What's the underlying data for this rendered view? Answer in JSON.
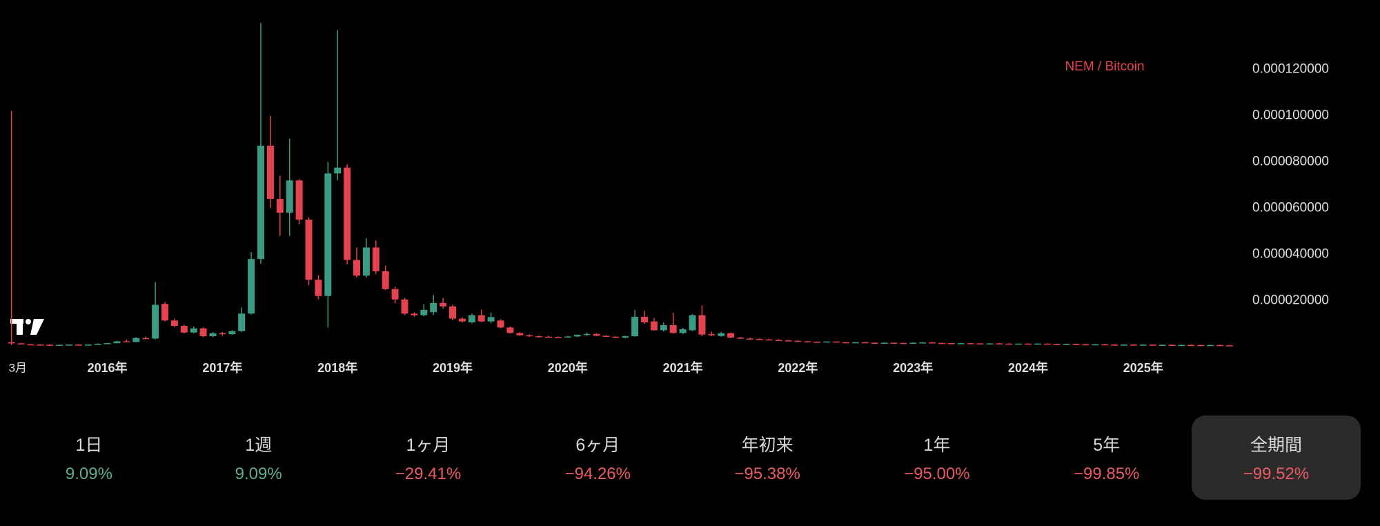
{
  "chart_data": {
    "type": "candlestick",
    "categories": [
      "3月",
      null,
      null,
      null,
      null,
      null,
      null,
      null,
      null,
      null,
      "2016年",
      null,
      null,
      null,
      null,
      null,
      null,
      null,
      null,
      null,
      null,
      null,
      "2017年",
      null,
      null,
      null,
      null,
      null,
      null,
      null,
      null,
      null,
      null,
      null,
      "2018年",
      null,
      null,
      null,
      null,
      null,
      null,
      null,
      null,
      null,
      null,
      null,
      "2019年",
      null,
      null,
      null,
      null,
      null,
      null,
      null,
      null,
      null,
      null,
      null,
      "2020年",
      null,
      null,
      null,
      null,
      null,
      null,
      null,
      null,
      null,
      null,
      null,
      "2021年",
      null,
      null,
      null,
      null,
      null,
      null,
      null,
      null,
      null,
      null,
      null,
      "2022年",
      null,
      null,
      null,
      null,
      null,
      null,
      null,
      null,
      null,
      null,
      null,
      "2023年",
      null,
      null,
      null,
      null,
      null,
      null,
      null,
      null,
      null,
      null,
      null,
      "2024年",
      null,
      null,
      null,
      null,
      null,
      null,
      null,
      null,
      null,
      null,
      null,
      "2025年",
      null,
      null,
      null,
      null,
      null,
      null,
      null,
      null,
      null
    ],
    "series": [
      {
        "name": "NEM / Bitcoin",
        "color": "#e5424f",
        "up_color": "#3a9c82",
        "down_color": "#e5424f",
        "open": [
          2e-06,
          1.5e-06,
          1.1e-06,
          1e-06,
          9e-07,
          8e-07,
          9e-07,
          1e-06,
          9e-07,
          1e-06,
          1.3e-06,
          1.6e-06,
          2.4e-06,
          2.1e-06,
          3.8e-06,
          3.6e-06,
          1.86e-05,
          1.14e-05,
          9.1e-06,
          6.2e-06,
          8e-06,
          4.6e-06,
          5.9e-06,
          5.5e-06,
          6.8e-06,
          1.44e-05,
          3.8e-05,
          8.7e-05,
          6.4e-05,
          5.8e-05,
          7.2e-05,
          5.5e-05,
          2.9e-05,
          2.2e-05,
          7.5e-05,
          7.75e-05,
          3.76e-05,
          3.08e-05,
          4.3e-05,
          3.27e-05,
          2.5e-05,
          2.05e-05,
          1.44e-05,
          1.37e-05,
          1.5e-05,
          1.9e-05,
          1.75e-05,
          1.22e-05,
          1.06e-05,
          1.37e-05,
          1.1e-05,
          1.14e-05,
          8.4e-06,
          6e-06,
          5e-06,
          4.6e-06,
          4.4e-06,
          4.3e-06,
          4.1e-06,
          4.5e-06,
          5.2e-06,
          5.6e-06,
          4.8e-06,
          4.4e-06,
          4e-06,
          4.6e-06,
          1.3e-05,
          1.1e-05,
          7.2e-06,
          9.4e-06,
          6e-06,
          7.2e-06,
          1.37e-05,
          5.5e-06,
          4.7e-06,
          5.9e-06,
          4e-06,
          3.6e-06,
          3.4e-06,
          3.2e-06,
          3e-06,
          2.8e-06,
          2.6e-06,
          2.4e-06,
          2.2e-06,
          2.1e-06,
          2.3e-06,
          2e-06,
          1.9e-06,
          2e-06,
          1.8e-06,
          1.7e-06,
          1.8e-06,
          1.7e-06,
          1.6e-06,
          1.8e-06,
          1.9e-06,
          1.7e-06,
          1.6e-06,
          1.5e-06,
          1.6e-06,
          1.5e-06,
          1.4e-06,
          1.5e-06,
          1.4e-06,
          1.3e-06,
          1.4e-06,
          1.3e-06,
          1.4e-06,
          1.2e-06,
          1.1e-06,
          1.2e-06,
          1.1e-06,
          1e-06,
          1.1e-06,
          1e-06,
          9.5e-07,
          1e-06,
          9e-07,
          9.5e-07,
          8.5e-07,
          9e-07,
          8e-07,
          8.5e-07,
          8e-07,
          7.5e-07,
          8e-07,
          7e-07
        ],
        "high": [
          0.000102,
          1.8e-06,
          1.3e-06,
          1.2e-06,
          1.1e-06,
          1e-06,
          1.1e-06,
          1.2e-06,
          1.1e-06,
          1.5e-06,
          1.8e-06,
          2.6e-06,
          3.2e-06,
          4.2e-06,
          4.5e-06,
          2.8e-05,
          1.94e-05,
          1.22e-05,
          9.6e-06,
          8.8e-06,
          8.5e-06,
          6.4e-06,
          6.4e-06,
          7.2e-06,
          1.7e-05,
          4.1e-05,
          0.00014,
          0.0001,
          7.4e-05,
          9e-05,
          7.25e-05,
          5.6e-05,
          3.1e-05,
          8e-05,
          0.000137,
          7.9e-05,
          4.3e-05,
          4.7e-05,
          4.6e-05,
          3.5e-05,
          2.6e-05,
          2.12e-05,
          1.5e-05,
          1.85e-05,
          2.24e-05,
          2.12e-05,
          1.82e-05,
          1.28e-05,
          1.44e-05,
          1.6e-05,
          1.48e-05,
          1.2e-05,
          8.8e-06,
          6.4e-06,
          5.4e-06,
          5e-06,
          4.8e-06,
          4.6e-06,
          4.8e-06,
          5.4e-06,
          6.2e-06,
          5.9e-06,
          5e-06,
          4.6e-06,
          4.9e-06,
          1.6e-05,
          1.56e-05,
          1.25e-05,
          1.05e-05,
          1.48e-05,
          8.2e-06,
          1.42e-05,
          1.79e-05,
          6.6e-06,
          6.4e-06,
          6.2e-06,
          4.4e-06,
          4e-06,
          3.8e-06,
          3.5e-06,
          3.3e-06,
          3.1e-06,
          2.9e-06,
          2.55e-06,
          2.35e-06,
          2.45e-06,
          2.45e-06,
          2.15e-06,
          2.15e-06,
          2.15e-06,
          1.95e-06,
          1.95e-06,
          1.95e-06,
          1.85e-06,
          1.95e-06,
          2.05e-06,
          2.05e-06,
          1.85e-06,
          1.75e-06,
          1.75e-06,
          1.75e-06,
          1.65e-06,
          1.65e-06,
          1.65e-06,
          1.55e-06,
          1.55e-06,
          1.55e-06,
          1.55e-06,
          1.55e-06,
          1.35e-06,
          1.35e-06,
          1.35e-06,
          1.25e-06,
          1.25e-06,
          1.25e-06,
          1.15e-06,
          1.15e-06,
          1.15e-06,
          1.1e-06,
          1.1e-06,
          1.05e-06,
          1.05e-06,
          1e-06,
          1e-06,
          9.5e-07,
          9.5e-07,
          9.5e-07,
          8.5e-07
        ],
        "low": [
          8e-07,
          1e-06,
          9e-07,
          8e-07,
          7e-07,
          7e-07,
          8e-07,
          8e-07,
          8e-07,
          9e-07,
          1.2e-06,
          1.5e-06,
          2e-06,
          2e-06,
          3.3e-06,
          3.2e-06,
          1.1e-05,
          8.6e-06,
          5.8e-06,
          5.9e-06,
          4.2e-06,
          4.2e-06,
          4.8e-06,
          5.2e-06,
          6.5e-06,
          1.4e-05,
          3.6e-05,
          6e-05,
          4.8e-05,
          4.8e-05,
          5.3e-05,
          2.66e-05,
          2.05e-05,
          8.4e-06,
          7.2e-05,
          3.57e-05,
          3e-05,
          3e-05,
          3.15e-05,
          2.45e-05,
          1.88e-05,
          1.37e-05,
          1.3e-05,
          1.32e-05,
          1.37e-05,
          1.65e-05,
          1.14e-05,
          1.06e-05,
          1.02e-05,
          1.06e-05,
          1.02e-05,
          8e-06,
          5.7e-06,
          4.8e-06,
          4.4e-06,
          4.2e-06,
          4.1e-06,
          3.9e-06,
          3.9e-06,
          4.2e-06,
          4.8e-06,
          4.6e-06,
          4.2e-06,
          3.8e-06,
          3.7e-06,
          4.4e-06,
          1e-05,
          7e-06,
          6.6e-06,
          5.7e-06,
          5.5e-06,
          6.8e-06,
          4.6e-06,
          4.6e-06,
          4.4e-06,
          3.7e-06,
          3.4e-06,
          3.2e-06,
          3e-06,
          2.9e-06,
          2.7e-06,
          2.5e-06,
          2.3e-06,
          2.1e-06,
          2e-06,
          2e-06,
          1.9e-06,
          1.8e-06,
          1.8e-06,
          1.7e-06,
          1.6e-06,
          1.6e-06,
          1.6e-06,
          1.5e-06,
          1.5e-06,
          1.7e-06,
          1.6e-06,
          1.5e-06,
          1.4e-06,
          1.4e-06,
          1.4e-06,
          1.3e-06,
          1.3e-06,
          1.3e-06,
          1.2e-06,
          1.2e-06,
          1.2e-06,
          1.2e-06,
          1.1e-06,
          1e-06,
          1e-06,
          1e-06,
          9e-07,
          9e-07,
          9e-07,
          8.5e-07,
          8.5e-07,
          8e-07,
          8e-07,
          7.5e-07,
          7.5e-07,
          7e-07,
          7e-07,
          7e-07,
          6.5e-07,
          6.5e-07,
          6e-07,
          5.5e-07
        ],
        "close": [
          1.5e-06,
          1.1e-06,
          1e-06,
          9e-07,
          8e-07,
          9e-07,
          1e-06,
          9e-07,
          1e-06,
          1.3e-06,
          1.6e-06,
          2.4e-06,
          2.1e-06,
          3.8e-06,
          3.6e-06,
          1.82e-05,
          1.14e-05,
          9.1e-06,
          6.2e-06,
          8e-06,
          4.6e-06,
          5.9e-06,
          5.5e-06,
          6.8e-06,
          1.44e-05,
          3.8e-05,
          8.7e-05,
          6.4e-05,
          5.8e-05,
          7.2e-05,
          5.5e-05,
          2.9e-05,
          2.2e-05,
          7.5e-05,
          7.75e-05,
          3.76e-05,
          3.08e-05,
          4.3e-05,
          3.27e-05,
          2.5e-05,
          2.05e-05,
          1.44e-05,
          1.37e-05,
          1.6e-05,
          1.9e-05,
          1.75e-05,
          1.22e-05,
          1.1e-05,
          1.37e-05,
          1.1e-05,
          1.29e-05,
          8.4e-06,
          6e-06,
          5e-06,
          4.6e-06,
          4.4e-06,
          4.3e-06,
          4.1e-06,
          4.5e-06,
          5.2e-06,
          5.6e-06,
          4.8e-06,
          4.4e-06,
          4e-06,
          4.6e-06,
          1.3e-05,
          1.06e-05,
          7.2e-06,
          9.4e-06,
          6e-06,
          7.6e-06,
          1.37e-05,
          5.3e-06,
          5e-06,
          5.9e-06,
          4e-06,
          3.6e-06,
          3.4e-06,
          3.2e-06,
          3e-06,
          2.8e-06,
          2.6e-06,
          2.4e-06,
          2.2e-06,
          2.1e-06,
          2.3e-06,
          2e-06,
          1.9e-06,
          2e-06,
          1.8e-06,
          1.7e-06,
          1.8e-06,
          1.7e-06,
          1.6e-06,
          1.8e-06,
          1.9e-06,
          1.7e-06,
          1.6e-06,
          1.5e-06,
          1.6e-06,
          1.5e-06,
          1.4e-06,
          1.5e-06,
          1.4e-06,
          1.3e-06,
          1.4e-06,
          1.3e-06,
          1.4e-06,
          1.2e-06,
          1.1e-06,
          1.2e-06,
          1.1e-06,
          1e-06,
          1.1e-06,
          1e-06,
          9.5e-07,
          1e-06,
          9e-07,
          9.5e-07,
          8.5e-07,
          9e-07,
          8e-07,
          8.5e-07,
          8e-07,
          7.5e-07,
          8e-07,
          7e-07,
          6.5e-07
        ]
      }
    ],
    "ylim": [
      0,
      0.00015
    ],
    "yticks": [
      {
        "value": 2e-05,
        "label": "0.000020000"
      },
      {
        "value": 4e-05,
        "label": "0.000040000"
      },
      {
        "value": 6e-05,
        "label": "0.000060000"
      },
      {
        "value": 8e-05,
        "label": "0.000080000"
      },
      {
        "value": 0.0001,
        "label": "0.000100000"
      },
      {
        "value": 0.00012,
        "label": "0.000120000"
      }
    ],
    "grid": false
  },
  "periods": {
    "labels": [
      "1日",
      "1週",
      "1ヶ月",
      "6ヶ月",
      "年初来",
      "1年",
      "5年",
      "全期間"
    ],
    "values": [
      9.09,
      9.09,
      -29.41,
      -94.26,
      -95.38,
      -95.0,
      -99.85,
      -99.52
    ],
    "value_labels": [
      "9.09%",
      "9.09%",
      "−29.41%",
      "−94.26%",
      "−95.38%",
      "−95.00%",
      "−99.85%",
      "−99.52%"
    ],
    "selected": 7
  }
}
